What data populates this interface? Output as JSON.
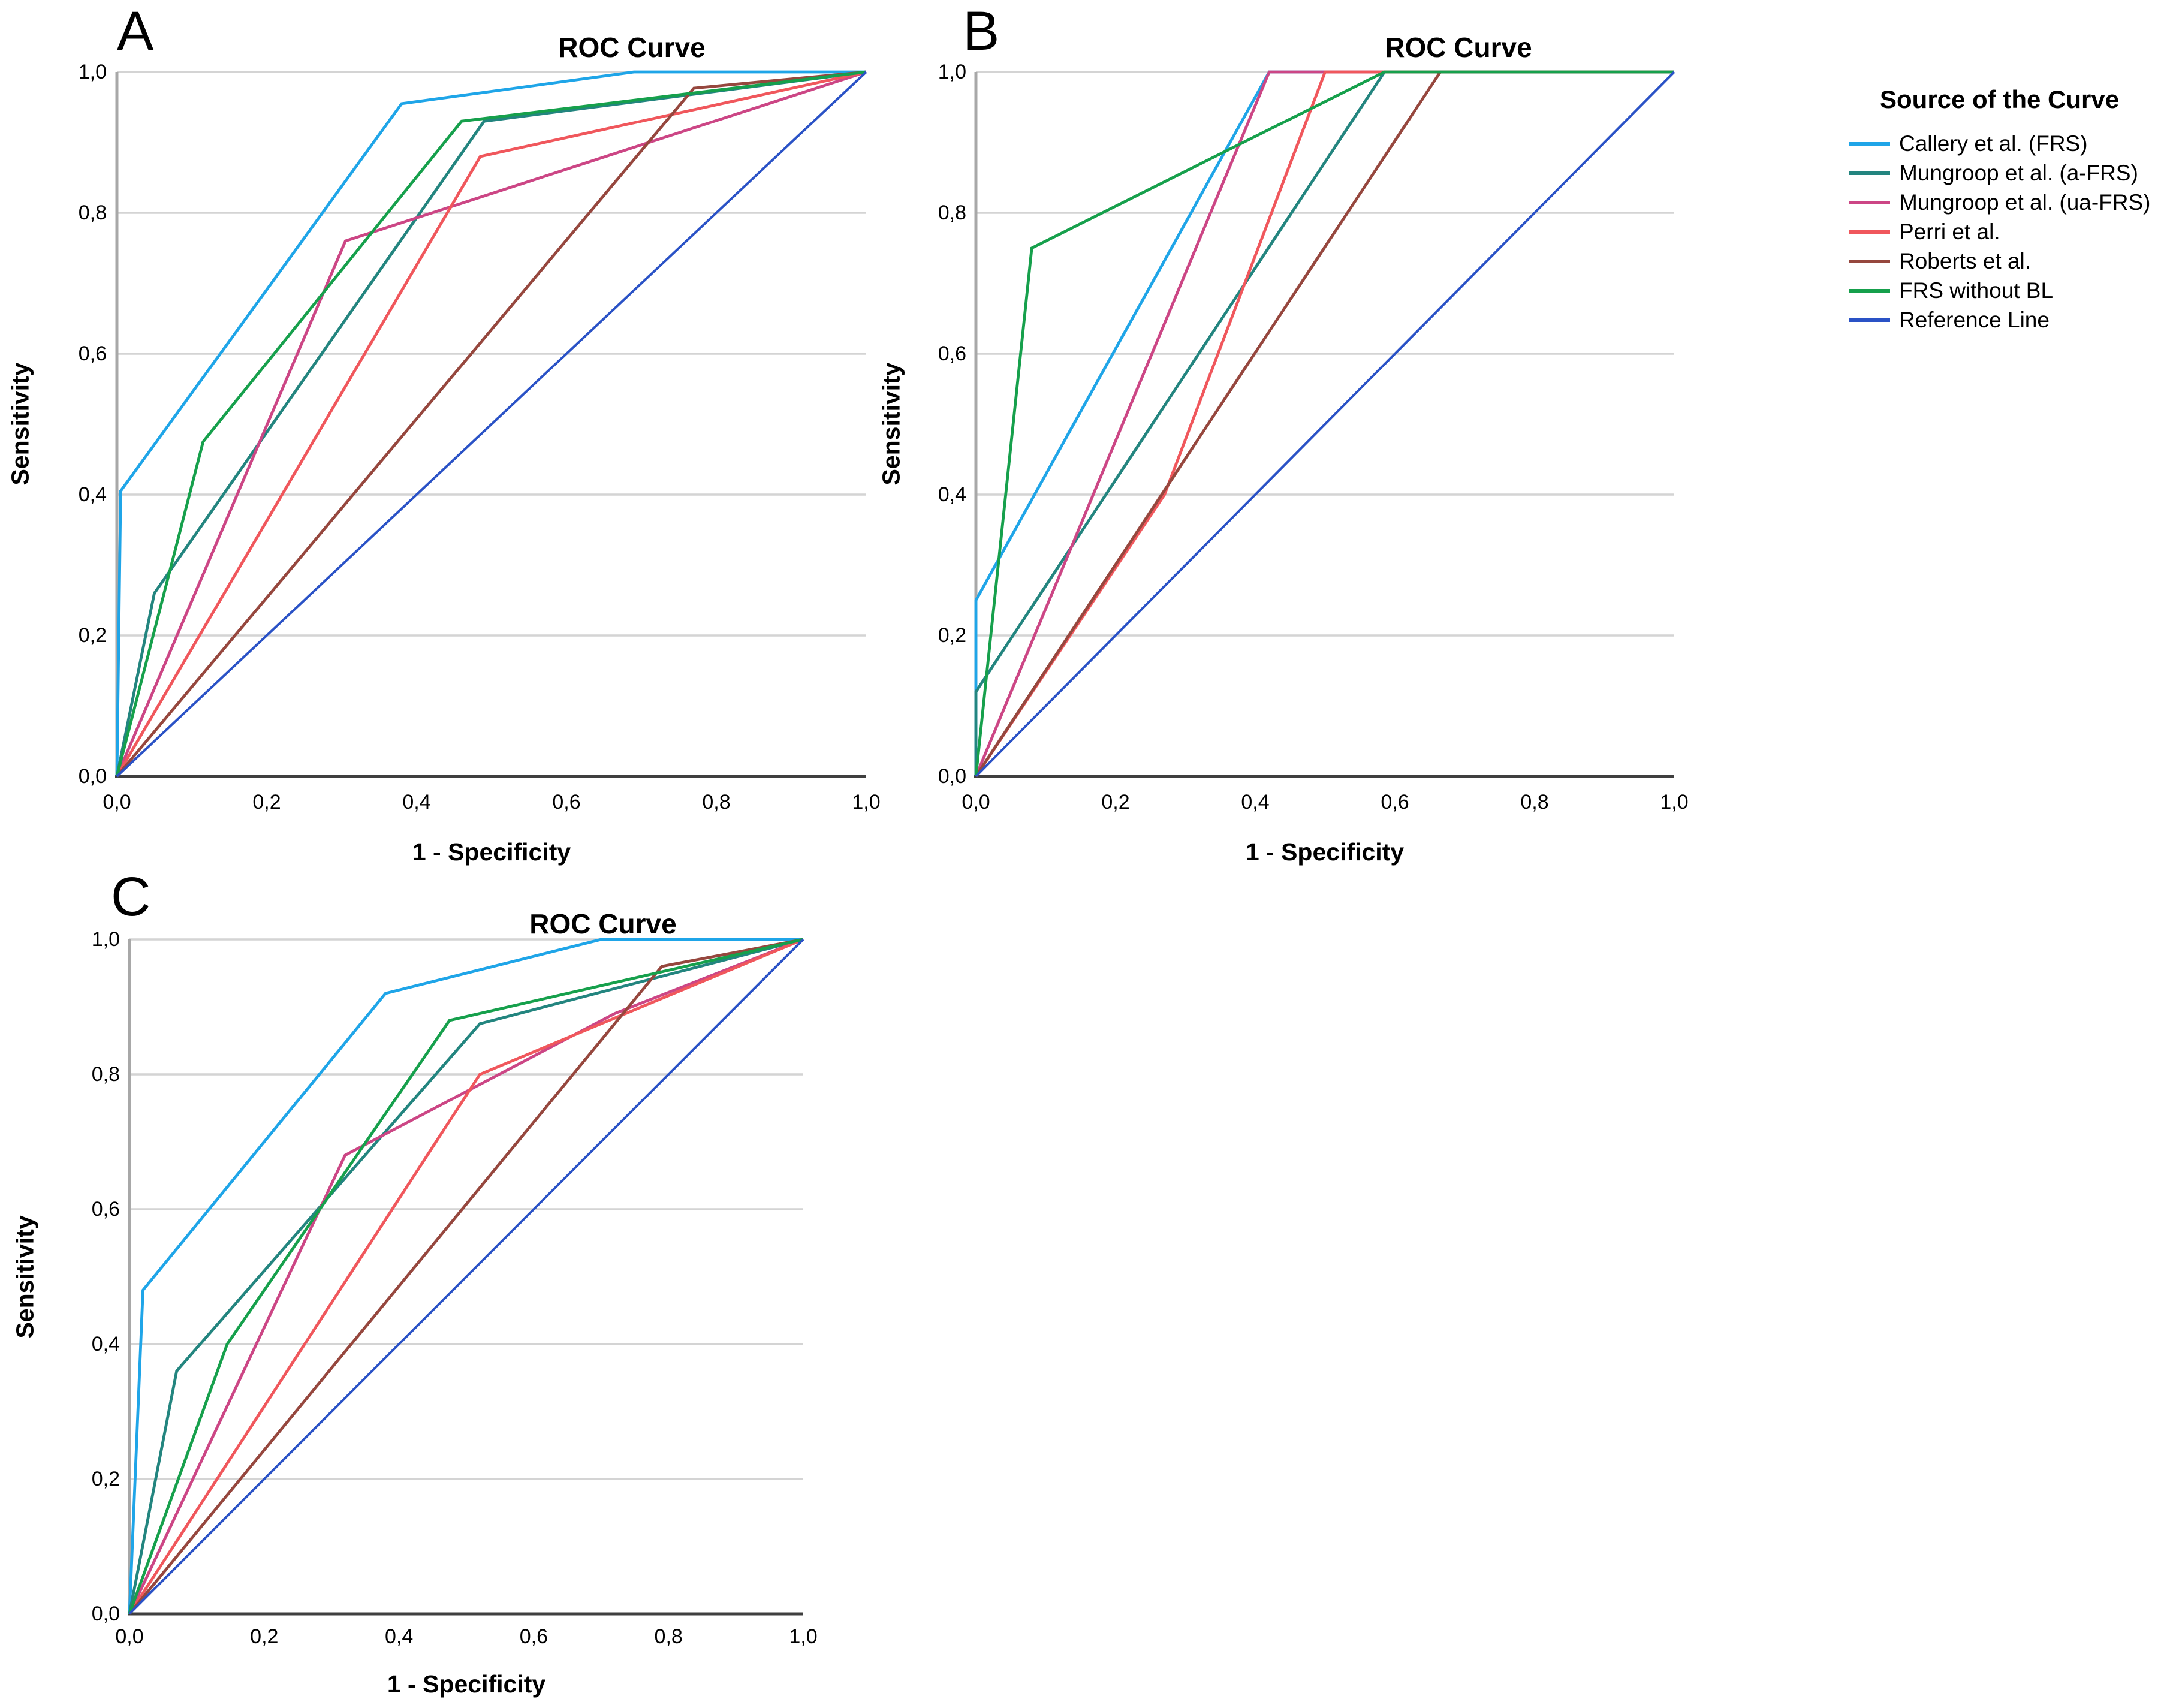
{
  "legend": {
    "title": "Source of the Curve",
    "items": [
      {
        "label": "Callery et al. (FRS)",
        "color": "#1FA5E8"
      },
      {
        "label": "Mungroop et al. (a-FRS)",
        "color": "#23857F"
      },
      {
        "label": "Mungroop et al. (ua-FRS)",
        "color": "#CC4685"
      },
      {
        "label": "Perri et al.",
        "color": "#F0575C"
      },
      {
        "label": "Roberts et al.",
        "color": "#96473E"
      },
      {
        "label": "FRS without BL",
        "color": "#16A04C"
      },
      {
        "label": "Reference Line",
        "color": "#2A52C6"
      }
    ]
  },
  "chart_data": [
    {
      "id": "A",
      "type": "line",
      "label": "A",
      "title": "ROC Curve",
      "xlabel": "1 - Specificity",
      "ylabel": "Sensitivity",
      "xlim": [
        0,
        1
      ],
      "ylim": [
        0,
        1
      ],
      "grid": "horizontal",
      "x_ticks": [
        "0,0",
        "0,2",
        "0,4",
        "0,6",
        "0,8",
        "1,0"
      ],
      "y_ticks": [
        "1,0",
        "0,8",
        "0,6",
        "0,4",
        "0,2",
        "0,0"
      ],
      "series": [
        {
          "name": "Callery et al. (FRS)",
          "color": "#1FA5E8",
          "points": [
            [
              0,
              0
            ],
            [
              0.005,
              0.405
            ],
            [
              0.38,
              0.955
            ],
            [
              0.69,
              1
            ],
            [
              1,
              1
            ]
          ]
        },
        {
          "name": "Mungroop et al. (a-FRS)",
          "color": "#23857F",
          "points": [
            [
              0,
              0
            ],
            [
              0.05,
              0.26
            ],
            [
              0.49,
              0.93
            ],
            [
              1,
              1
            ]
          ]
        },
        {
          "name": "Mungroop et al. (ua-FRS)",
          "color": "#CC4685",
          "points": [
            [
              0,
              0
            ],
            [
              0.305,
              0.76
            ],
            [
              1,
              1
            ]
          ]
        },
        {
          "name": "Perri et al.",
          "color": "#F0575C",
          "points": [
            [
              0,
              0
            ],
            [
              0.485,
              0.88
            ],
            [
              1,
              1
            ]
          ]
        },
        {
          "name": "Roberts et al.",
          "color": "#96473E",
          "points": [
            [
              0,
              0
            ],
            [
              0.77,
              0.977
            ],
            [
              1,
              1
            ]
          ]
        },
        {
          "name": "FRS without BL",
          "color": "#16A04C",
          "points": [
            [
              0,
              0
            ],
            [
              0.115,
              0.475
            ],
            [
              0.46,
              0.93
            ],
            [
              1,
              1
            ]
          ]
        },
        {
          "name": "Reference Line",
          "color": "#2A52C6",
          "points": [
            [
              0,
              0
            ],
            [
              1,
              1
            ]
          ]
        }
      ]
    },
    {
      "id": "B",
      "type": "line",
      "label": "B",
      "title": "ROC Curve",
      "xlabel": "1 - Specificity",
      "ylabel": "Sensitivity",
      "xlim": [
        0,
        1
      ],
      "ylim": [
        0,
        1
      ],
      "grid": "horizontal",
      "x_ticks": [
        "0,0",
        "0,2",
        "0,4",
        "0,6",
        "0,8",
        "1,0"
      ],
      "y_ticks": [
        "1,0",
        "0,8",
        "0,6",
        "0,4",
        "0,2",
        "0,0"
      ],
      "series": [
        {
          "name": "Callery et al. (FRS)",
          "color": "#1FA5E8",
          "points": [
            [
              0,
              0
            ],
            [
              0,
              0.25
            ],
            [
              0.42,
              1
            ],
            [
              1,
              1
            ]
          ]
        },
        {
          "name": "Mungroop et al. (a-FRS)",
          "color": "#23857F",
          "points": [
            [
              0,
              0
            ],
            [
              0,
              0.12
            ],
            [
              0.585,
              1
            ],
            [
              1,
              1
            ]
          ]
        },
        {
          "name": "Mungroop et al. (ua-FRS)",
          "color": "#CC4685",
          "points": [
            [
              0,
              0
            ],
            [
              0.42,
              1
            ],
            [
              1,
              1
            ]
          ]
        },
        {
          "name": "Perri et al.",
          "color": "#F0575C",
          "points": [
            [
              0,
              0
            ],
            [
              0.27,
              0.4
            ],
            [
              0.5,
              1
            ],
            [
              1,
              1
            ]
          ]
        },
        {
          "name": "Roberts et al.",
          "color": "#96473E",
          "points": [
            [
              0,
              0
            ],
            [
              0.665,
              1
            ],
            [
              1,
              1
            ]
          ]
        },
        {
          "name": "FRS without BL",
          "color": "#16A04C",
          "points": [
            [
              0,
              0
            ],
            [
              0.08,
              0.75
            ],
            [
              0.585,
              1
            ],
            [
              1,
              1
            ]
          ]
        },
        {
          "name": "Reference Line",
          "color": "#2A52C6",
          "points": [
            [
              0,
              0
            ],
            [
              1,
              1
            ]
          ]
        }
      ]
    },
    {
      "id": "C",
      "type": "line",
      "label": "C",
      "title": "ROC Curve",
      "xlabel": "1 - Specificity",
      "ylabel": "Sensitivity",
      "xlim": [
        0,
        1
      ],
      "ylim": [
        0,
        1
      ],
      "grid": "horizontal",
      "x_ticks": [
        "0,0",
        "0,2",
        "0,4",
        "0,6",
        "0,8",
        "1,0"
      ],
      "y_ticks": [
        "1,0",
        "0,8",
        "0,6",
        "0,4",
        "0,2",
        "0,0"
      ],
      "series": [
        {
          "name": "Callery et al. (FRS)",
          "color": "#1FA5E8",
          "points": [
            [
              0,
              0
            ],
            [
              0.02,
              0.48
            ],
            [
              0.38,
              0.92
            ],
            [
              0.7,
              1
            ],
            [
              1,
              1
            ]
          ]
        },
        {
          "name": "Mungroop et al. (a-FRS)",
          "color": "#23857F",
          "points": [
            [
              0,
              0
            ],
            [
              0.07,
              0.36
            ],
            [
              0.52,
              0.875
            ],
            [
              1,
              1
            ]
          ]
        },
        {
          "name": "Mungroop et al. (ua-FRS)",
          "color": "#CC4685",
          "points": [
            [
              0,
              0
            ],
            [
              0.32,
              0.68
            ],
            [
              0.72,
              0.89
            ],
            [
              1,
              1
            ]
          ]
        },
        {
          "name": "Perri et al.",
          "color": "#F0575C",
          "points": [
            [
              0,
              0
            ],
            [
              0.52,
              0.8
            ],
            [
              1,
              1
            ]
          ]
        },
        {
          "name": "Roberts et al.",
          "color": "#96473E",
          "points": [
            [
              0,
              0
            ],
            [
              0.79,
              0.96
            ],
            [
              1,
              1
            ]
          ]
        },
        {
          "name": "FRS without BL",
          "color": "#16A04C",
          "points": [
            [
              0,
              0
            ],
            [
              0.145,
              0.4
            ],
            [
              0.475,
              0.88
            ],
            [
              1,
              1
            ]
          ]
        },
        {
          "name": "Reference Line",
          "color": "#2A52C6",
          "points": [
            [
              0,
              0
            ],
            [
              1,
              1
            ]
          ]
        }
      ]
    }
  ]
}
